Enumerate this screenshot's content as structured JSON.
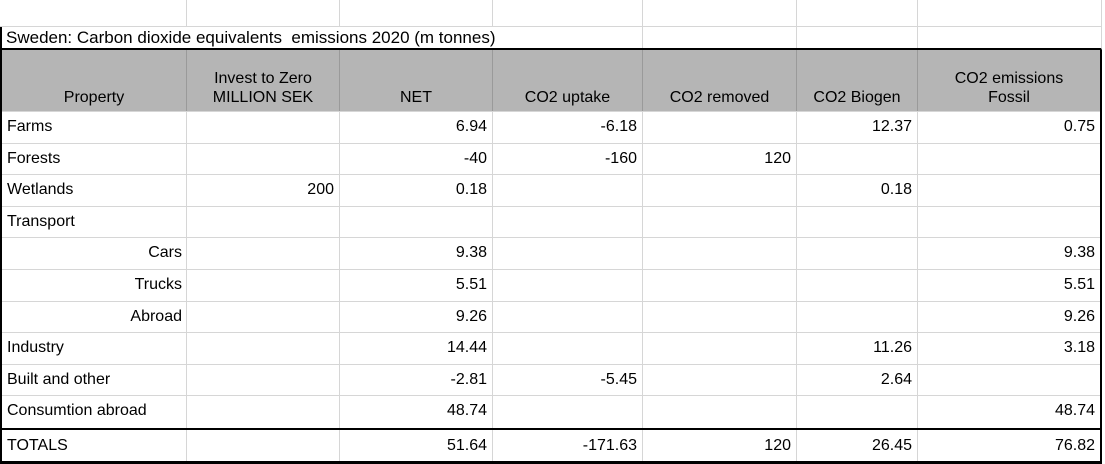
{
  "sheet": {
    "title": "Sweden: Carbon dioxide equivalents  emissions 2020 (m tonnes)",
    "columns": {
      "property": "Property",
      "invest": "Invest to Zero\nMILLION SEK",
      "net": "NET",
      "uptake": "CO2 uptake",
      "removed": "CO2 removed",
      "biogen": "CO2 Biogen",
      "fossil": "CO2 emissions\nFossil"
    },
    "rows": [
      {
        "property": "Farms",
        "invest": "",
        "net": "6.94",
        "uptake": "-6.18",
        "removed": "",
        "biogen": "12.37",
        "fossil": "0.75"
      },
      {
        "property": "Forests",
        "invest": "",
        "net": "-40",
        "uptake": "-160",
        "removed": "120",
        "biogen": "",
        "fossil": ""
      },
      {
        "property": "Wetlands",
        "invest": "200",
        "net": "0.18",
        "uptake": "",
        "removed": "",
        "biogen": "0.18",
        "fossil": ""
      },
      {
        "property": "Transport",
        "invest": "",
        "net": "",
        "uptake": "",
        "removed": "",
        "biogen": "",
        "fossil": ""
      },
      {
        "property": "Cars",
        "invest": "",
        "net": "9.38",
        "uptake": "",
        "removed": "",
        "biogen": "",
        "fossil": "9.38"
      },
      {
        "property": "Trucks",
        "invest": "",
        "net": "5.51",
        "uptake": "",
        "removed": "",
        "biogen": "",
        "fossil": "5.51"
      },
      {
        "property": "Abroad",
        "invest": "",
        "net": "9.26",
        "uptake": "",
        "removed": "",
        "biogen": "",
        "fossil": "9.26"
      },
      {
        "property": "Industry",
        "invest": "",
        "net": "14.44",
        "uptake": "",
        "removed": "",
        "biogen": "11.26",
        "fossil": "3.18"
      },
      {
        "property": "Built and other",
        "invest": "",
        "net": "-2.81",
        "uptake": "-5.45",
        "removed": "",
        "biogen": "2.64",
        "fossil": ""
      },
      {
        "property": "Consumtion abroad",
        "invest": "",
        "net": "48.74",
        "uptake": "",
        "removed": "",
        "biogen": "",
        "fossil": "48.74"
      },
      {
        "property": "TOTALS",
        "invest": "",
        "net": "51.64",
        "uptake": "-171.63",
        "removed": "120",
        "biogen": "26.45",
        "fossil": "76.82"
      }
    ],
    "colors": {
      "header_fill": "#b5b5b5",
      "header_divider": "#9a9a9a",
      "gridline": "#d6d6d6",
      "table_border": "#000000"
    }
  }
}
